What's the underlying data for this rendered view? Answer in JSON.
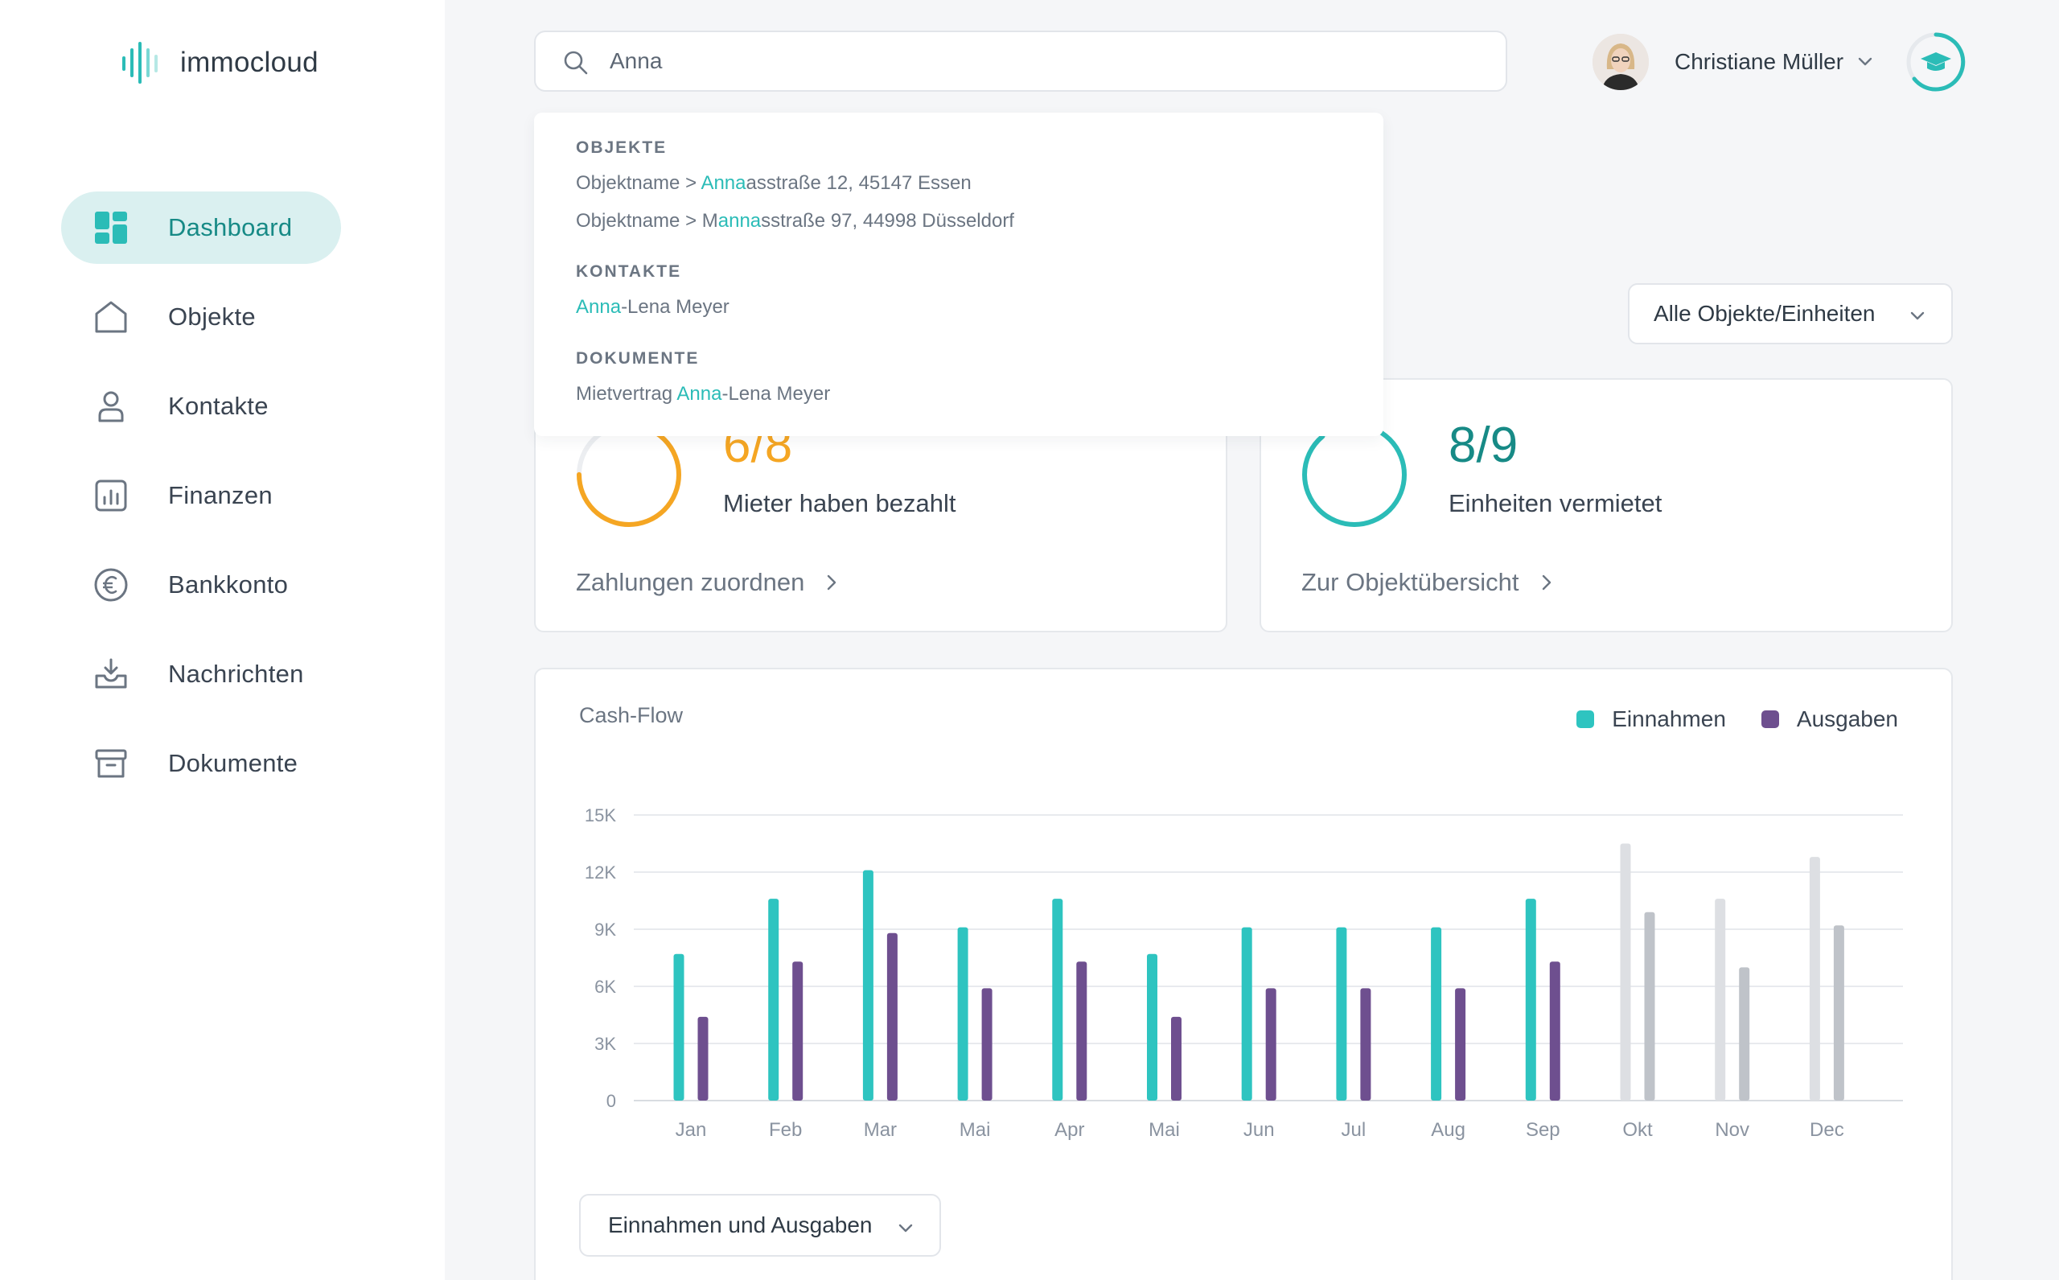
{
  "app": {
    "name": "immocloud"
  },
  "nav": [
    {
      "label": "Dashboard",
      "icon": "dashboard-icon",
      "active": true
    },
    {
      "label": "Objekte",
      "icon": "house-icon",
      "active": false
    },
    {
      "label": "Kontakte",
      "icon": "person-icon",
      "active": false
    },
    {
      "label": "Finanzen",
      "icon": "bar-chart-icon",
      "active": false
    },
    {
      "label": "Bankkonto",
      "icon": "euro-icon",
      "active": false
    },
    {
      "label": "Nachrichten",
      "icon": "inbox-icon",
      "active": false
    },
    {
      "label": "Dokumente",
      "icon": "archive-icon",
      "active": false
    }
  ],
  "search": {
    "value": "Anna",
    "placeholder": ""
  },
  "user": {
    "name": "Christiane Müller"
  },
  "dropdown": {
    "objekte": {
      "title": "OBJEKTE",
      "items": [
        {
          "prefix": "Objektname > ",
          "match": "Anna",
          "suffix": "asstraße 12, 45147 Essen"
        },
        {
          "prefix": "Objektname > M",
          "match": "anna",
          "suffix": "sstraße 97, 44998 Düsseldorf"
        }
      ]
    },
    "kontakte": {
      "title": "KONTAKTE",
      "items": [
        {
          "prefix": "",
          "match": "Anna",
          "suffix": "-Lena Meyer"
        }
      ]
    },
    "dokumente": {
      "title": "DOKUMENTE",
      "items": [
        {
          "prefix": "Mietvertrag ",
          "match": "Anna",
          "suffix": "-Lena Meyer"
        }
      ]
    }
  },
  "filter": {
    "label": "Alle Objekte/Einheiten"
  },
  "cards": {
    "paid": {
      "value": "6/8",
      "fraction": 0.75,
      "label": "Mieter haben bezahlt",
      "link": "Zahlungen zuordnen",
      "color": "#f5a623"
    },
    "rented": {
      "value": "8/9",
      "fraction": 0.889,
      "label": "Einheiten vermietet",
      "link": "Zur Objektübersicht",
      "color": "#2bbcb7"
    }
  },
  "chart_data": {
    "type": "bar",
    "title": "Cash-Flow",
    "categories": [
      "Jan",
      "Feb",
      "Mar",
      "Mai",
      "Apr",
      "Mai",
      "Jun",
      "Jul",
      "Aug",
      "Sep",
      "Okt",
      "Nov",
      "Dec"
    ],
    "series": [
      {
        "name": "Einnahmen",
        "color": "#2ec4c0",
        "values": [
          7700,
          10600,
          12100,
          9100,
          10600,
          7700,
          9100,
          9100,
          9100,
          10600,
          13500,
          10600,
          12800
        ]
      },
      {
        "name": "Ausgaben",
        "color": "#6e4f8f",
        "values": [
          4400,
          7300,
          8800,
          5900,
          7300,
          4400,
          5900,
          5900,
          5900,
          7300,
          9900,
          7000,
          9200
        ]
      }
    ],
    "projected_from_index": 10,
    "projected_colors": [
      "#dddfe3",
      "#bfc3c9"
    ],
    "yticks": [
      "0",
      "3K",
      "6K",
      "9K",
      "12K",
      "15K"
    ],
    "ylim": [
      0,
      15000
    ],
    "grid": true,
    "legend": "top-right"
  },
  "chart_select": {
    "label": "Einnahmen und Ausgaben"
  }
}
